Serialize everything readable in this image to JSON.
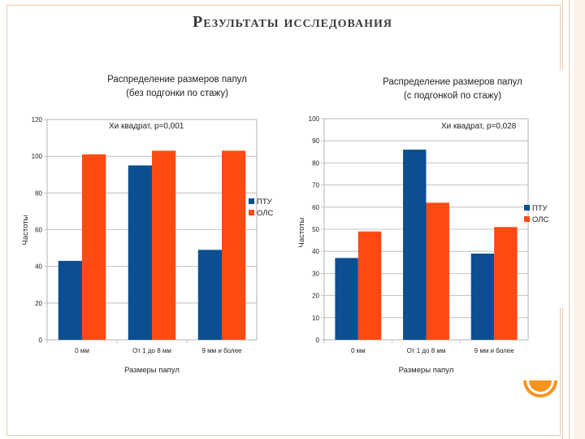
{
  "slide": {
    "title": "Результаты исследования"
  },
  "chart_data": [
    {
      "type": "bar",
      "title_lines": [
        "Распределение размеров папул",
        "(без подгонки по стажу)"
      ],
      "annotation": "Хи квадрат, p=0,001",
      "categories": [
        "0 мм",
        "От 1 до 8 мм",
        "9 мм и более"
      ],
      "series": [
        {
          "name": "ПТУ",
          "color": "#0b4f91",
          "values": [
            43,
            95,
            49
          ]
        },
        {
          "name": "ОЛС",
          "color": "#ff4a12",
          "values": [
            101,
            103,
            103
          ]
        }
      ],
      "xlabel": "Размеры папул",
      "ylabel": "Частоты",
      "ylim": [
        0,
        120
      ],
      "yticks": [
        "0",
        "20",
        "40",
        "60",
        "80",
        "100",
        "120"
      ],
      "legend": "right",
      "grid": true
    },
    {
      "type": "bar",
      "title_lines": [
        "Распределение размеров папул",
        "(с подгонкой по стажу)"
      ],
      "annotation": "Хи квадрат, p=0,028",
      "categories": [
        "0 мм",
        "От 1 до 8 мм",
        "9 мм и более"
      ],
      "series": [
        {
          "name": "ПТУ",
          "color": "#0b4f91",
          "values": [
            37,
            86,
            39
          ]
        },
        {
          "name": "ОЛС",
          "color": "#ff4a12",
          "values": [
            49,
            62,
            51
          ]
        }
      ],
      "xlabel": "Размеры папул",
      "ylabel": "Частоты",
      "ylim": [
        0,
        100
      ],
      "yticks": [
        "0",
        "10",
        "20",
        "30",
        "40",
        "50",
        "60",
        "70",
        "80",
        "90",
        "100"
      ],
      "legend": "right",
      "grid": true
    }
  ]
}
